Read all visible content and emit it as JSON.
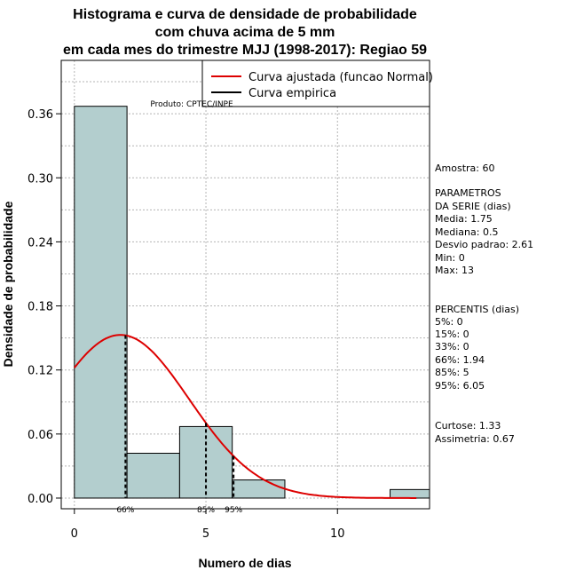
{
  "chart_data": {
    "type": "bar",
    "title_lines": [
      "Histograma e curva de densidade de probabilidade",
      "com chuva acima de 5 mm",
      "em cada mes do trimestre MJJ (1998-2017): Regiao 59"
    ],
    "xlabel": "Numero de dias",
    "ylabel": "Densidade de probabilidade",
    "xlim": [
      -0.5,
      13.5
    ],
    "ylim": [
      -0.01,
      0.41
    ],
    "x_ticks": [
      0,
      5,
      10
    ],
    "y_ticks": [
      0.0,
      0.06,
      0.12,
      0.18,
      0.24,
      0.3,
      0.36
    ],
    "y_tick_labels": [
      "0.00",
      "0.06",
      "0.12",
      "0.18",
      "0.24",
      "0.30",
      "0.36"
    ],
    "bins": [
      {
        "start": 0,
        "end": 2,
        "density": 0.367
      },
      {
        "start": 2,
        "end": 4,
        "density": 0.042
      },
      {
        "start": 4,
        "end": 6,
        "density": 0.067
      },
      {
        "start": 6,
        "end": 8,
        "density": 0.017
      },
      {
        "start": 8,
        "end": 10,
        "density": 0
      },
      {
        "start": 10,
        "end": 12,
        "density": 0
      },
      {
        "start": 12,
        "end": 14,
        "density": 0.008
      }
    ],
    "bar_color": "#b3cece",
    "normal_curve": {
      "mean": 1.75,
      "sd": 2.61,
      "color": "#dd0000"
    },
    "percentile_markers": [
      {
        "label": "66%",
        "x": 1.94
      },
      {
        "label": "85%",
        "x": 5
      },
      {
        "label": "95%",
        "x": 6.05
      }
    ],
    "legend": [
      {
        "label": "Curva ajustada (funcao Normal)",
        "color": "#dd0000"
      },
      {
        "label": "Curva empirica",
        "color": "#000000"
      }
    ],
    "producer": "Produto: CPTEC/INPE",
    "stats_text": [
      "Amostra: 60",
      " PARAMETROS",
      "DA SERIE (dias)",
      "  Media: 1.75",
      "  Mediana: 0.5",
      "  Desvio padrao: 2.61",
      "  Min: 0",
      "  Max: 13",
      "PERCENTIS (dias)",
      "  5%: 0",
      "  15%: 0",
      "  33%: 0",
      "  66%: 1.94",
      "  85%: 5",
      "  95%: 6.05",
      "  Curtose: 1.33",
      "Assimetria: 0.67"
    ]
  }
}
